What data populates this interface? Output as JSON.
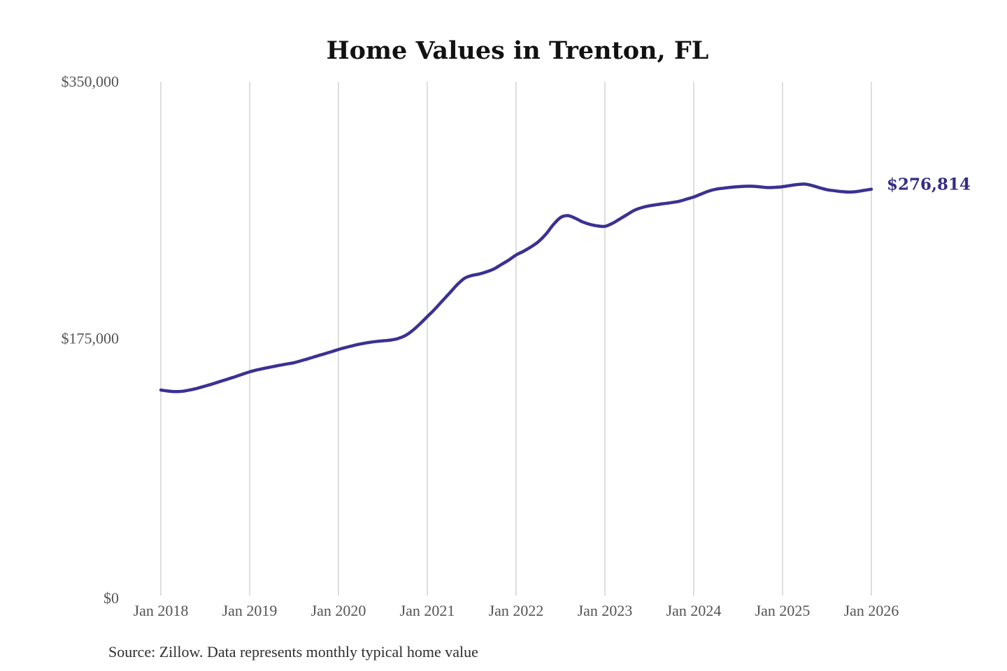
{
  "page": {
    "title": "Home Values in Trenton, FL",
    "source_note": "Source: Zillow. Data represents monthly typical home value"
  },
  "chart_data": {
    "type": "line",
    "title": "Home Values in Trenton, FL",
    "series_name": "Monthly typical home value",
    "unit": "USD",
    "start_month": "2018-01",
    "end_month": "2026-01",
    "x_tick_labels": [
      "Jan 2018",
      "Jan 2019",
      "Jan 2020",
      "Jan 2021",
      "Jan 2022",
      "Jan 2023",
      "Jan 2024",
      "Jan 2025",
      "Jan 2026"
    ],
    "y_ticks": [
      {
        "value": 0,
        "label": "$0"
      },
      {
        "value": 175000,
        "label": "$175,000"
      },
      {
        "value": 350000,
        "label": "$350,000"
      }
    ],
    "ylim": [
      0,
      350000
    ],
    "grid": "vertical-only",
    "legend": "none",
    "end_label": "$276,814",
    "end_value": 276814,
    "monthly_values": [
      140000,
      139300,
      138900,
      139200,
      140100,
      141300,
      142700,
      144200,
      145800,
      147400,
      149000,
      150700,
      152400,
      153700,
      154800,
      155800,
      156800,
      157700,
      158600,
      160000,
      161500,
      163000,
      164500,
      166000,
      167600,
      169000,
      170300,
      171400,
      172300,
      173000,
      173500,
      174000,
      175000,
      177000,
      180500,
      185000,
      190000,
      195000,
      200500,
      206000,
      211500,
      216000,
      218000,
      219000,
      220500,
      222500,
      225500,
      228500,
      232000,
      234500,
      237500,
      241000,
      246000,
      252500,
      257500,
      258800,
      257000,
      254500,
      252800,
      251800,
      251500,
      253500,
      256500,
      259500,
      262500,
      264300,
      265500,
      266300,
      267000,
      267700,
      268500,
      270000,
      271500,
      273500,
      275500,
      276800,
      277500,
      278100,
      278500,
      278800,
      278800,
      278400,
      277900,
      278100,
      278500,
      279300,
      280000,
      280300,
      279300,
      277800,
      276500,
      275800,
      275200,
      274900,
      275200,
      276000,
      276814
    ],
    "colors": {
      "line": "#3b3193",
      "end_label": "#352c86",
      "grid": "#cccccc",
      "axis_text": "#545454",
      "title_text": "#121212",
      "source_text": "#2e2e2e"
    }
  }
}
